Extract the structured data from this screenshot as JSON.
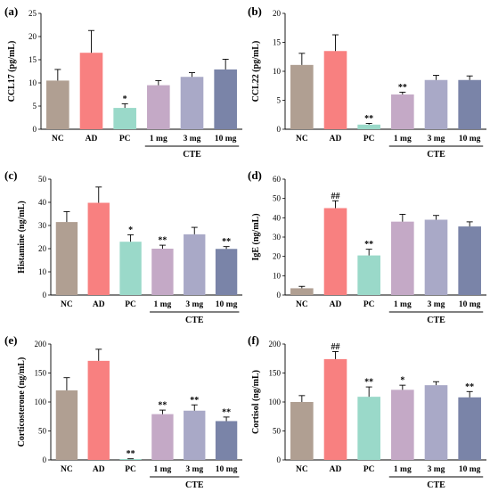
{
  "colors": [
    "#b09f92",
    "#f88080",
    "#9ad9c9",
    "#c4a9c6",
    "#a9a9c7",
    "#7a84a8"
  ],
  "chart_data": [
    {
      "type": "bar",
      "panel": "(a)",
      "ylabel": "CCL17 (pg/mL)",
      "ylim": [
        0,
        25
      ],
      "yticks": [
        0,
        5,
        10,
        15,
        20,
        25
      ],
      "categories": [
        "NC",
        "AD",
        "PC",
        "1 mg",
        "3 mg",
        "10 mg"
      ],
      "group_label": "CTE",
      "values": [
        10.5,
        16.5,
        4.6,
        9.5,
        11.3,
        12.9
      ],
      "errors": [
        2.4,
        4.8,
        0.9,
        1.0,
        0.9,
        2.2
      ],
      "significance": [
        "",
        "",
        "*",
        "",
        "",
        ""
      ]
    },
    {
      "type": "bar",
      "panel": "(b)",
      "ylabel": "CCL22 (pg/mL)",
      "ylim": [
        0,
        20
      ],
      "yticks": [
        0,
        5,
        10,
        15,
        20
      ],
      "categories": [
        "NC",
        "AD",
        "PC",
        "1 mg",
        "3 mg",
        "10 mg"
      ],
      "group_label": "CTE",
      "values": [
        11.1,
        13.5,
        0.8,
        6.0,
        8.5,
        8.5
      ],
      "errors": [
        2.0,
        2.8,
        0.2,
        0.4,
        0.8,
        0.7
      ],
      "significance": [
        "",
        "",
        "**",
        "**",
        "",
        ""
      ]
    },
    {
      "type": "bar",
      "panel": "(c)",
      "ylabel": "Histamine (ng/mL)",
      "ylim": [
        0,
        50
      ],
      "yticks": [
        0,
        10,
        20,
        30,
        40,
        50
      ],
      "categories": [
        "NC",
        "AD",
        "PC",
        "1 mg",
        "3 mg",
        "10 mg"
      ],
      "group_label": "CTE",
      "values": [
        31.5,
        39.8,
        23.0,
        20.0,
        26.2,
        19.9
      ],
      "errors": [
        4.5,
        6.8,
        3.0,
        1.5,
        3.0,
        1.0
      ],
      "significance": [
        "",
        "",
        "*",
        "**",
        "",
        "**"
      ]
    },
    {
      "type": "bar",
      "panel": "(d)",
      "ylabel": "IgE (ng/mL)",
      "ylim": [
        0,
        60
      ],
      "yticks": [
        0,
        10,
        20,
        30,
        40,
        50,
        60
      ],
      "categories": [
        "NC",
        "AD",
        "PC",
        "1 mg",
        "3 mg",
        "10 mg"
      ],
      "group_label": "CTE",
      "values": [
        3.5,
        45.0,
        20.5,
        38.0,
        39.0,
        35.5
      ],
      "errors": [
        1.0,
        3.8,
        3.2,
        3.8,
        2.2,
        2.4
      ],
      "significance": [
        "",
        "##",
        "**",
        "",
        "",
        ""
      ]
    },
    {
      "type": "bar",
      "panel": "(e)",
      "ylabel": "Corticosterone (ng/mL)",
      "ylim": [
        0,
        200
      ],
      "yticks": [
        0,
        50,
        100,
        150,
        200
      ],
      "categories": [
        "NC",
        "AD",
        "PC",
        "1 mg",
        "3 mg",
        "10 mg"
      ],
      "group_label": "CTE",
      "values": [
        120,
        171,
        1.5,
        79,
        85,
        67
      ],
      "errors": [
        22,
        20,
        0.5,
        7,
        10,
        7
      ],
      "significance": [
        "",
        "",
        "**",
        "**",
        "**",
        "**"
      ]
    },
    {
      "type": "bar",
      "panel": "(f)",
      "ylabel": "Cortisol (ng/mL)",
      "ylim": [
        0,
        200
      ],
      "yticks": [
        0,
        50,
        100,
        150,
        200
      ],
      "categories": [
        "NC",
        "AD",
        "PC",
        "1 mg",
        "3 mg",
        "10 mg"
      ],
      "group_label": "CTE",
      "values": [
        100,
        174,
        109,
        121,
        129,
        108
      ],
      "errors": [
        11,
        13,
        17,
        8,
        6,
        10
      ],
      "significance": [
        "",
        "##",
        "**",
        "*",
        "",
        "**"
      ]
    }
  ]
}
